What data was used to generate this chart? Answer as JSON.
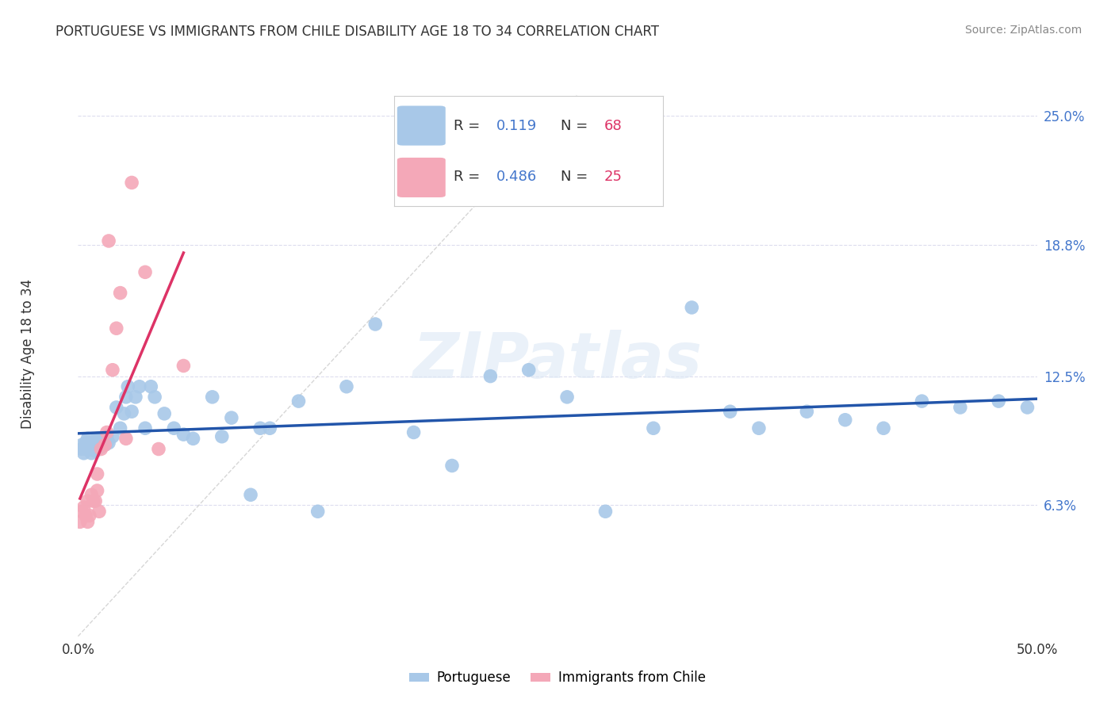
{
  "title": "PORTUGUESE VS IMMIGRANTS FROM CHILE DISABILITY AGE 18 TO 34 CORRELATION CHART",
  "source_text": "Source: ZipAtlas.com",
  "ylabel": "Disability Age 18 to 34",
  "xlim": [
    0.0,
    0.5
  ],
  "ylim": [
    0.0,
    0.265
  ],
  "xtick_positions": [
    0.0,
    0.1,
    0.2,
    0.3,
    0.4,
    0.5
  ],
  "xtick_labels": [
    "0.0%",
    "",
    "",
    "",
    "",
    "50.0%"
  ],
  "ytick_positions": [
    0.063,
    0.125,
    0.188,
    0.25
  ],
  "ytick_labels": [
    "6.3%",
    "12.5%",
    "18.8%",
    "25.0%"
  ],
  "portuguese_color": "#a8c8e8",
  "chile_color": "#f4a8b8",
  "trendline_portuguese_color": "#2255aa",
  "trendline_chile_color": "#dd3366",
  "diagonal_line_color": "#cccccc",
  "grid_color": "#ddddee",
  "background_color": "#ffffff",
  "R_portuguese": 0.119,
  "N_portuguese": 68,
  "R_chile": 0.486,
  "N_chile": 25,
  "portuguese_x": [
    0.002,
    0.002,
    0.003,
    0.004,
    0.004,
    0.005,
    0.005,
    0.006,
    0.006,
    0.007,
    0.007,
    0.008,
    0.008,
    0.009,
    0.009,
    0.01,
    0.01,
    0.01,
    0.011,
    0.012,
    0.013,
    0.014,
    0.015,
    0.015,
    0.016,
    0.018,
    0.02,
    0.022,
    0.024,
    0.025,
    0.026,
    0.028,
    0.03,
    0.032,
    0.035,
    0.038,
    0.04,
    0.045,
    0.05,
    0.055,
    0.06,
    0.07,
    0.075,
    0.08,
    0.09,
    0.095,
    0.1,
    0.115,
    0.125,
    0.14,
    0.155,
    0.175,
    0.195,
    0.215,
    0.235,
    0.255,
    0.275,
    0.3,
    0.32,
    0.34,
    0.355,
    0.38,
    0.4,
    0.42,
    0.44,
    0.46,
    0.48,
    0.495
  ],
  "portuguese_y": [
    0.09,
    0.092,
    0.088,
    0.09,
    0.093,
    0.091,
    0.095,
    0.09,
    0.093,
    0.088,
    0.091,
    0.09,
    0.093,
    0.089,
    0.093,
    0.09,
    0.092,
    0.095,
    0.095,
    0.091,
    0.093,
    0.092,
    0.093,
    0.096,
    0.093,
    0.096,
    0.11,
    0.1,
    0.107,
    0.115,
    0.12,
    0.108,
    0.115,
    0.12,
    0.1,
    0.12,
    0.115,
    0.107,
    0.1,
    0.097,
    0.095,
    0.115,
    0.096,
    0.105,
    0.068,
    0.1,
    0.1,
    0.113,
    0.06,
    0.12,
    0.15,
    0.098,
    0.082,
    0.125,
    0.128,
    0.115,
    0.06,
    0.1,
    0.158,
    0.108,
    0.1,
    0.108,
    0.104,
    0.1,
    0.113,
    0.11,
    0.113,
    0.11
  ],
  "chile_x": [
    0.001,
    0.002,
    0.003,
    0.004,
    0.005,
    0.005,
    0.006,
    0.007,
    0.008,
    0.009,
    0.01,
    0.01,
    0.011,
    0.012,
    0.014,
    0.015,
    0.016,
    0.018,
    0.02,
    0.022,
    0.025,
    0.028,
    0.035,
    0.042,
    0.055
  ],
  "chile_y": [
    0.055,
    0.06,
    0.062,
    0.058,
    0.055,
    0.065,
    0.058,
    0.068,
    0.065,
    0.065,
    0.07,
    0.078,
    0.06,
    0.09,
    0.092,
    0.098,
    0.19,
    0.128,
    0.148,
    0.165,
    0.095,
    0.218,
    0.175,
    0.09,
    0.13
  ]
}
